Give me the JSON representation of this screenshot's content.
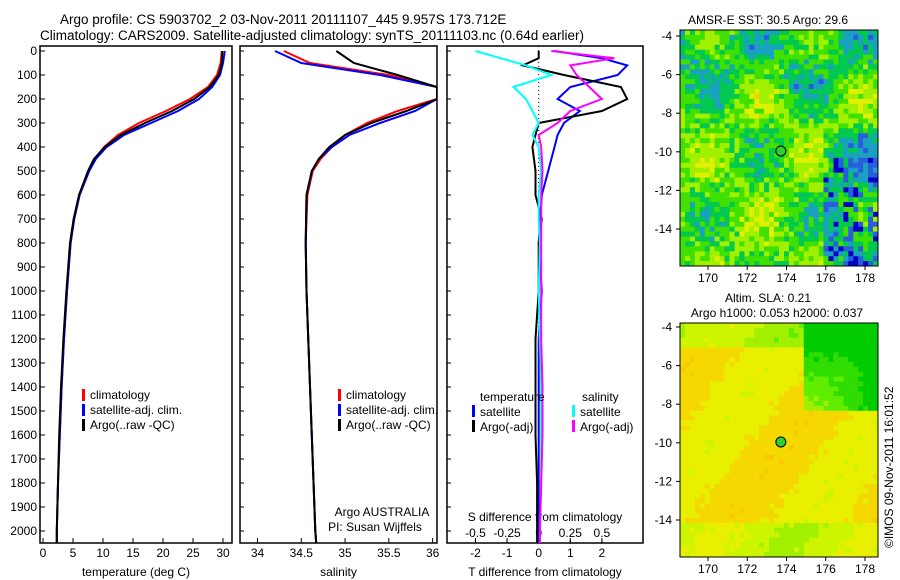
{
  "title_line1": "Argo profile: CS 5903702_2 03-Nov-2011 20111107_445 9.957S 173.712E",
  "title_line2": "Climatology: CARS2009. Satellite-adjusted climatology: synTS_20111103.nc (0.64d earlier)",
  "footer_stamp": "©IMOS 09-Nov-2011 16:01:52",
  "colors": {
    "climatology": "#ff0000",
    "satellite": "#0000ff",
    "argo": "#000000",
    "sal_satellite": "#00ffff",
    "sal_argo": "#ff00ff"
  },
  "chart_data": [
    {
      "type": "line",
      "id": "temperature",
      "xlabel": "temperature (deg C)",
      "ylabel": "",
      "xlim": [
        -0.5,
        31.5
      ],
      "ylim": [
        2050,
        0
      ],
      "xticks": [
        "0",
        "5",
        "10",
        "15",
        "20",
        "25",
        "30"
      ],
      "yticks": [
        "0",
        "100",
        "200",
        "300",
        "400",
        "500",
        "600",
        "700",
        "800",
        "900",
        "1000",
        "1100",
        "1200",
        "1300",
        "1400",
        "1500",
        "1600",
        "1700",
        "1800",
        "1900",
        "2000"
      ],
      "legend": [
        "climatology",
        "satellite-adj. clim.",
        "Argo(..raw -QC)"
      ],
      "depth": [
        0,
        50,
        100,
        150,
        200,
        250,
        300,
        350,
        400,
        450,
        500,
        600,
        700,
        800,
        1000,
        1200,
        1400,
        1600,
        1800,
        2000,
        2050
      ],
      "series": [
        {
          "name": "climatology",
          "values": [
            29.8,
            29.6,
            29.0,
            27.5,
            24.5,
            20.5,
            16.0,
            12.5,
            10.2,
            8.6,
            7.6,
            6.1,
            5.2,
            4.6,
            4.0,
            3.5,
            3.1,
            2.8,
            2.5,
            2.3,
            2.3
          ]
        },
        {
          "name": "satellite-adj. clim.",
          "values": [
            30.3,
            30.0,
            29.5,
            28.2,
            26.0,
            22.5,
            18.0,
            13.5,
            10.6,
            8.8,
            7.7,
            6.1,
            5.2,
            4.6,
            4.0,
            3.5,
            3.1,
            2.8,
            2.5,
            2.3,
            2.3
          ]
        },
        {
          "name": "Argo(..raw -QC)",
          "values": [
            29.9,
            29.8,
            29.3,
            27.8,
            25.2,
            21.5,
            17.0,
            13.0,
            10.3,
            8.5,
            7.5,
            6.0,
            5.1,
            4.5,
            3.9,
            3.4,
            3.0,
            2.7,
            2.5,
            2.3,
            2.3
          ]
        }
      ]
    },
    {
      "type": "line",
      "id": "salinity",
      "xlabel": "salinity",
      "xlim": [
        33.8,
        36.05
      ],
      "ylim": [
        2050,
        0
      ],
      "xticks": [
        "34",
        "34.5",
        "35",
        "35.5",
        "36"
      ],
      "legend": [
        "climatology",
        "satellite-adj. clim.",
        "Argo(..raw -QC)"
      ],
      "annotation": [
        "Argo AUSTRALIA",
        "PI: Susan Wijffels"
      ],
      "depth": [
        0,
        50,
        100,
        150,
        200,
        250,
        300,
        350,
        400,
        450,
        500,
        600,
        800,
        1000,
        1500,
        2000,
        2050
      ],
      "series": [
        {
          "name": "climatology",
          "values": [
            34.3,
            34.6,
            35.5,
            36.05,
            36.05,
            35.6,
            35.25,
            35.0,
            34.85,
            34.72,
            34.63,
            34.57,
            34.55,
            34.56,
            34.61,
            34.66,
            34.67
          ]
        },
        {
          "name": "satellite-adj. clim.",
          "values": [
            34.2,
            34.5,
            35.4,
            36.05,
            36.05,
            35.8,
            35.4,
            35.05,
            34.85,
            34.7,
            34.62,
            34.56,
            34.55,
            34.56,
            34.61,
            34.66,
            34.67
          ]
        },
        {
          "name": "Argo(..raw -QC)",
          "values": [
            34.9,
            35.1,
            35.6,
            36.05,
            36.05,
            35.7,
            35.3,
            35.0,
            34.82,
            34.7,
            34.62,
            34.56,
            34.55,
            34.56,
            34.61,
            34.66,
            34.67
          ]
        }
      ]
    },
    {
      "type": "line",
      "id": "difference",
      "xlabel": "T difference from climatology",
      "x2label": "S difference from climatology",
      "xlim": [
        -2.9,
        3.3
      ],
      "x2lim": [
        -0.725,
        0.825
      ],
      "ylim": [
        2050,
        0
      ],
      "xticks": [
        "-2",
        "-1",
        "0",
        "1",
        "2"
      ],
      "x2ticks": [
        "-0.5",
        "-0.25",
        "0",
        "0.25",
        "0.5"
      ],
      "legend_temp_title": "temperature",
      "legend_sal_title": "salinity",
      "legend": [
        "satellite",
        "Argo(-adj)",
        "satellite",
        "Argo(-adj)"
      ],
      "depth": [
        0,
        30,
        60,
        100,
        150,
        200,
        250,
        300,
        350,
        400,
        500,
        600,
        700,
        800,
        1000,
        1200,
        1400,
        1600,
        1800,
        2000,
        2050
      ],
      "series": [
        {
          "name": "temperature satellite",
          "values": [
            0.5,
            2.0,
            2.8,
            2.5,
            1.0,
            0.6,
            1.3,
            0.8,
            0.6,
            0.5,
            0.3,
            0.1,
            0.05,
            0.0,
            0.1,
            0.0,
            0.0,
            0.0,
            0.0,
            0.0,
            0.0
          ]
        },
        {
          "name": "temperature Argo(-adj)",
          "values": [
            0.0,
            0.0,
            -0.5,
            0.8,
            2.6,
            2.8,
            2.0,
            0.0,
            -0.1,
            -0.2,
            -0.1,
            -0.1,
            0.1,
            0.0,
            0.0,
            -0.1,
            -0.1,
            -0.1,
            -0.05,
            -0.05,
            -0.05
          ]
        },
        {
          "name": "salinity satellite",
          "values": [
            -0.5,
            -0.3,
            -0.1,
            0.1,
            -0.2,
            -0.1,
            -0.05,
            0.0,
            -0.05,
            0.0,
            0.02,
            0.0,
            0.0,
            0.01,
            0.0,
            0.01,
            0.02,
            0.02,
            0.02,
            0.01,
            0.01
          ]
        },
        {
          "name": "salinity Argo(-adj)",
          "values": [
            0.1,
            0.6,
            0.25,
            0.3,
            0.4,
            0.5,
            0.25,
            0.15,
            0.0,
            0.02,
            0.03,
            0.02,
            0.02,
            0.02,
            0.02,
            0.02,
            0.03,
            0.03,
            0.02,
            0.01,
            0.01
          ]
        }
      ]
    },
    {
      "type": "heatmap",
      "id": "sst_map",
      "title": "AMSR-E SST: 30.5  Argo: 29.6",
      "xlim": [
        168.6,
        178.9
      ],
      "ylim": [
        -15.8,
        -4
      ],
      "xticks": [
        "170",
        "172",
        "174",
        "176",
        "178"
      ],
      "yticks": [
        "-4",
        "-6",
        "-8",
        "-10",
        "-12",
        "-14"
      ],
      "marker": {
        "lon": 173.712,
        "lat": -9.957
      }
    },
    {
      "type": "heatmap",
      "id": "sla_map",
      "title_line1": "Altim. SLA: 0.21",
      "title_line2": "Argo h1000: 0.053 h2000: 0.037",
      "xlim": [
        168.6,
        178.9
      ],
      "ylim": [
        -15.8,
        -4
      ],
      "xticks": [
        "170",
        "172",
        "174",
        "176",
        "178"
      ],
      "yticks": [
        "-4",
        "-6",
        "-8",
        "-10",
        "-12",
        "-14"
      ],
      "marker": {
        "lon": 173.712,
        "lat": -9.957
      }
    }
  ]
}
